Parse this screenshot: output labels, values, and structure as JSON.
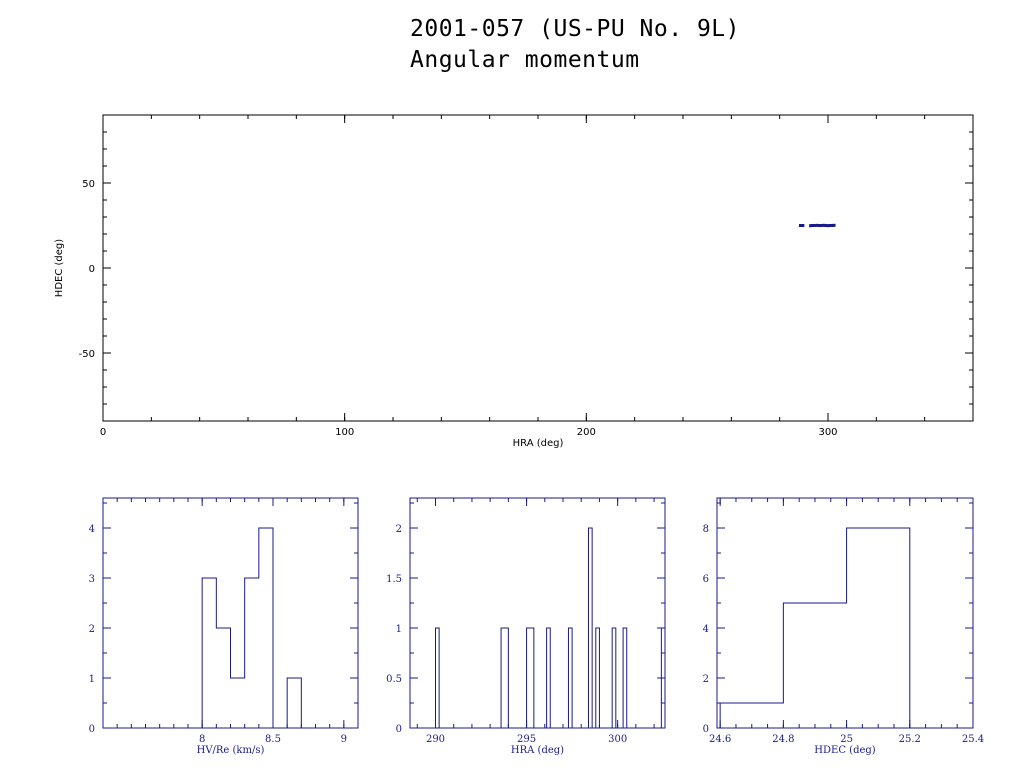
{
  "header": {
    "title": "2001-057 (US-PU No. 9L)",
    "subtitle": "Angular momentum"
  },
  "colors": {
    "axis_main": "#000000",
    "data": "#1a1a8c"
  },
  "chart_data": [
    {
      "type": "scatter",
      "xlabel": "HRA (deg)",
      "ylabel": "HDEC (deg)",
      "xlim": [
        0,
        360
      ],
      "ylim": [
        -90,
        90
      ],
      "xticks": [
        0,
        100,
        200,
        300
      ],
      "yticks": [
        -50,
        0,
        50
      ],
      "points": [
        {
          "x": 288.6,
          "y": 25.0
        },
        {
          "x": 289.6,
          "y": 25.0
        },
        {
          "x": 292.8,
          "y": 24.9
        },
        {
          "x": 293.6,
          "y": 25.0
        },
        {
          "x": 294.6,
          "y": 25.0
        },
        {
          "x": 295.5,
          "y": 25.1
        },
        {
          "x": 296.4,
          "y": 25.0
        },
        {
          "x": 297.3,
          "y": 25.0
        },
        {
          "x": 298.2,
          "y": 25.1
        },
        {
          "x": 299.1,
          "y": 25.0
        },
        {
          "x": 300.0,
          "y": 24.9
        },
        {
          "x": 300.9,
          "y": 25.0
        },
        {
          "x": 301.8,
          "y": 25.0
        },
        {
          "x": 302.5,
          "y": 25.1
        }
      ]
    },
    {
      "type": "histogram",
      "xlabel": "HV/Re (km/s)",
      "xlim": [
        7.3,
        9.1
      ],
      "ylim": [
        0,
        4.6
      ],
      "xticks": [
        8,
        8.5,
        9
      ],
      "yticks": [
        0,
        1,
        2,
        3,
        4
      ],
      "bins": [
        {
          "start": 8.0,
          "end": 8.1,
          "count": 3
        },
        {
          "start": 8.1,
          "end": 8.2,
          "count": 2
        },
        {
          "start": 8.2,
          "end": 8.3,
          "count": 1
        },
        {
          "start": 8.3,
          "end": 8.4,
          "count": 3
        },
        {
          "start": 8.4,
          "end": 8.5,
          "count": 4
        },
        {
          "start": 8.5,
          "end": 8.6,
          "count": 0
        },
        {
          "start": 8.6,
          "end": 8.7,
          "count": 1
        }
      ]
    },
    {
      "type": "histogram",
      "xlabel": "HRA (deg)",
      "xlim": [
        288.6,
        302.6
      ],
      "ylim": [
        0,
        2.3
      ],
      "xticks": [
        290,
        295,
        300
      ],
      "yticks": [
        0,
        0.5,
        1,
        1.5,
        2
      ],
      "bins": [
        {
          "start": 290.0,
          "end": 290.2,
          "count": 1
        },
        {
          "start": 293.6,
          "end": 294.0,
          "count": 1
        },
        {
          "start": 295.0,
          "end": 295.4,
          "count": 1
        },
        {
          "start": 296.1,
          "end": 296.3,
          "count": 1
        },
        {
          "start": 297.3,
          "end": 297.5,
          "count": 1
        },
        {
          "start": 298.4,
          "end": 298.6,
          "count": 2
        },
        {
          "start": 298.8,
          "end": 299.0,
          "count": 1
        },
        {
          "start": 299.7,
          "end": 299.9,
          "count": 1
        },
        {
          "start": 300.3,
          "end": 300.5,
          "count": 1
        },
        {
          "start": 302.4,
          "end": 302.6,
          "count": 1
        }
      ]
    },
    {
      "type": "histogram",
      "xlabel": "HDEC (deg)",
      "xlim": [
        24.59,
        25.4
      ],
      "ylim": [
        0,
        9.2
      ],
      "xticks": [
        24.6,
        24.8,
        25,
        25.2,
        25.4
      ],
      "yticks": [
        0,
        2,
        4,
        6,
        8
      ],
      "bins": [
        {
          "start": 24.6,
          "end": 24.8,
          "count": 1
        },
        {
          "start": 24.8,
          "end": 25.0,
          "count": 5
        },
        {
          "start": 25.0,
          "end": 25.2,
          "count": 8
        }
      ]
    }
  ]
}
